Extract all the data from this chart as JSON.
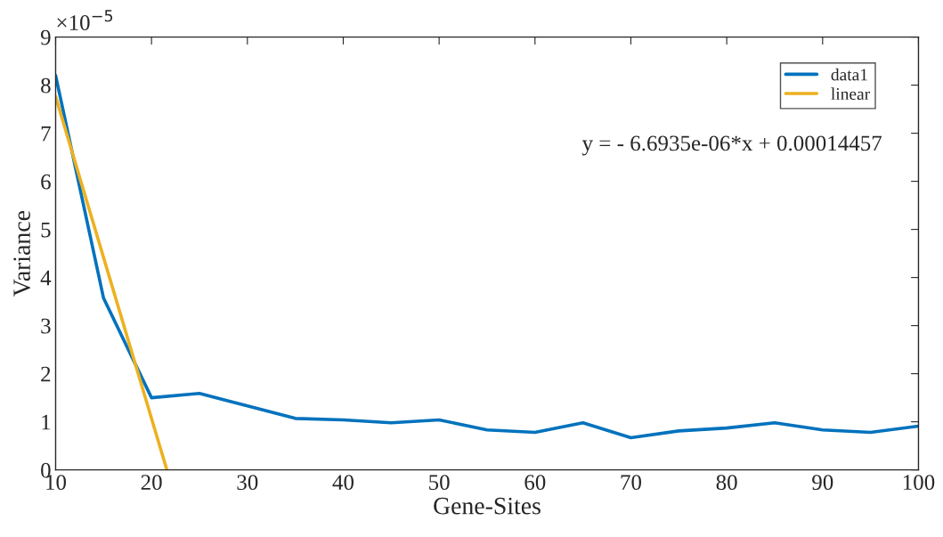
{
  "chart_data": {
    "type": "line",
    "xlabel": "Gene-Sites",
    "ylabel": "Variance",
    "xlim": [
      10,
      100
    ],
    "xticks": [
      10,
      20,
      30,
      40,
      50,
      60,
      70,
      80,
      90,
      100
    ],
    "ylim": [
      0,
      9
    ],
    "yticks": [
      0,
      1,
      2,
      3,
      4,
      5,
      6,
      7,
      8,
      9
    ],
    "grid": false,
    "legend": "top right",
    "marker": "none",
    "line_style": "solid",
    "annotations": [
      "×10$^{−5}$",
      "y = - 6.6935e-06*x + 0.00014457"
    ],
    "series": [
      {
        "name": "data1",
        "color": "#0072bd",
        "x": [
          10,
          15,
          20,
          25,
          30,
          35,
          40,
          45,
          50,
          55,
          60,
          65,
          70,
          75,
          80,
          85,
          90,
          95,
          100
        ],
        "values": [
          8.2,
          3.57,
          1.5,
          1.59,
          1.33,
          1.07,
          1.04,
          0.98,
          1.04,
          0.83,
          0.78,
          0.98,
          0.67,
          0.81,
          0.87,
          0.98,
          0.83,
          0.78,
          0.91
        ]
      },
      {
        "name": "linear",
        "color": "#edb120",
        "x": [
          10,
          21.6
        ],
        "values": [
          7.76,
          0
        ]
      }
    ]
  }
}
